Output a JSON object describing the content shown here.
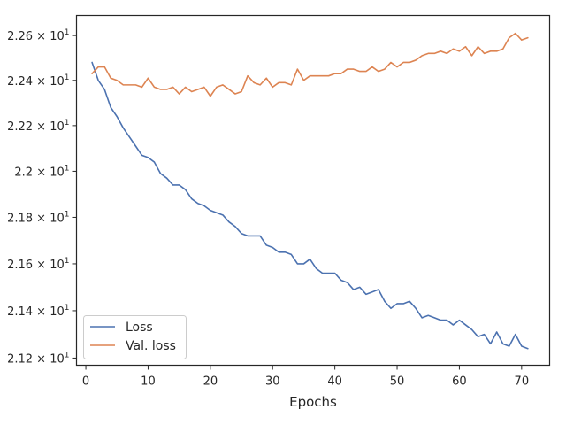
{
  "chart_data": {
    "type": "line",
    "xlabel": "Epochs",
    "ylabel": "",
    "xlim": [
      -1.5,
      74.5
    ],
    "ylim": [
      21.17,
      22.69
    ],
    "y_scale": "log",
    "grid": false,
    "legend_position": "lower-left",
    "xticks": [
      0,
      10,
      20,
      30,
      40,
      50,
      60,
      70
    ],
    "yticks": [
      {
        "value": 21.2,
        "label": "2.12 × 10"
      },
      {
        "value": 21.4,
        "label": "2.14 × 10"
      },
      {
        "value": 21.6,
        "label": "2.16 × 10"
      },
      {
        "value": 21.8,
        "label": "2.18 × 10"
      },
      {
        "value": 22.0,
        "label": "2.2 × 10"
      },
      {
        "value": 22.2,
        "label": "2.22 × 10"
      },
      {
        "value": 22.4,
        "label": "2.24 × 10"
      },
      {
        "value": 22.6,
        "label": "2.26 × 10"
      }
    ],
    "ytick_exponent": "1",
    "series": [
      {
        "name": "Loss",
        "color": "#4c72b0",
        "x": [
          1,
          2,
          3,
          4,
          5,
          6,
          7,
          8,
          9,
          10,
          11,
          12,
          13,
          14,
          15,
          16,
          17,
          18,
          19,
          20,
          21,
          22,
          23,
          24,
          25,
          26,
          27,
          28,
          29,
          30,
          31,
          32,
          33,
          34,
          35,
          36,
          37,
          38,
          39,
          40,
          41,
          42,
          43,
          44,
          45,
          46,
          47,
          48,
          49,
          50,
          51,
          52,
          53,
          54,
          55,
          56,
          57,
          58,
          59,
          60,
          61,
          62,
          63,
          64,
          65,
          66,
          67,
          68,
          69,
          70,
          71
        ],
        "values": [
          22.48,
          22.4,
          22.36,
          22.28,
          22.24,
          22.19,
          22.15,
          22.11,
          22.07,
          22.06,
          22.04,
          21.99,
          21.97,
          21.94,
          21.94,
          21.92,
          21.88,
          21.86,
          21.85,
          21.83,
          21.82,
          21.81,
          21.78,
          21.76,
          21.73,
          21.72,
          21.72,
          21.72,
          21.68,
          21.67,
          21.65,
          21.65,
          21.64,
          21.6,
          21.6,
          21.62,
          21.58,
          21.56,
          21.56,
          21.56,
          21.53,
          21.52,
          21.49,
          21.5,
          21.47,
          21.48,
          21.49,
          21.44,
          21.41,
          21.43,
          21.43,
          21.44,
          21.41,
          21.37,
          21.38,
          21.37,
          21.36,
          21.36,
          21.34,
          21.36,
          21.34,
          21.32,
          21.29,
          21.3,
          21.26,
          21.31,
          21.26,
          21.25,
          21.3,
          21.25,
          21.24
        ]
      },
      {
        "name": "Val. loss",
        "color": "#dd8452",
        "x": [
          1,
          2,
          3,
          4,
          5,
          6,
          7,
          8,
          9,
          10,
          11,
          12,
          13,
          14,
          15,
          16,
          17,
          18,
          19,
          20,
          21,
          22,
          23,
          24,
          25,
          26,
          27,
          28,
          29,
          30,
          31,
          32,
          33,
          34,
          35,
          36,
          37,
          38,
          39,
          40,
          41,
          42,
          43,
          44,
          45,
          46,
          47,
          48,
          49,
          50,
          51,
          52,
          53,
          54,
          55,
          56,
          57,
          58,
          59,
          60,
          61,
          62,
          63,
          64,
          65,
          66,
          67,
          68,
          69,
          70,
          71
        ],
        "values": [
          22.43,
          22.46,
          22.46,
          22.41,
          22.4,
          22.38,
          22.38,
          22.38,
          22.37,
          22.41,
          22.37,
          22.36,
          22.36,
          22.37,
          22.34,
          22.37,
          22.35,
          22.36,
          22.37,
          22.33,
          22.37,
          22.38,
          22.36,
          22.34,
          22.35,
          22.42,
          22.39,
          22.38,
          22.41,
          22.37,
          22.39,
          22.39,
          22.38,
          22.45,
          22.4,
          22.42,
          22.42,
          22.42,
          22.42,
          22.43,
          22.43,
          22.45,
          22.45,
          22.44,
          22.44,
          22.46,
          22.44,
          22.45,
          22.48,
          22.46,
          22.48,
          22.48,
          22.49,
          22.51,
          22.52,
          22.52,
          22.53,
          22.52,
          22.54,
          22.53,
          22.55,
          22.51,
          22.55,
          22.52,
          22.53,
          22.53,
          22.54,
          22.59,
          22.61,
          22.58,
          22.59
        ]
      }
    ]
  }
}
